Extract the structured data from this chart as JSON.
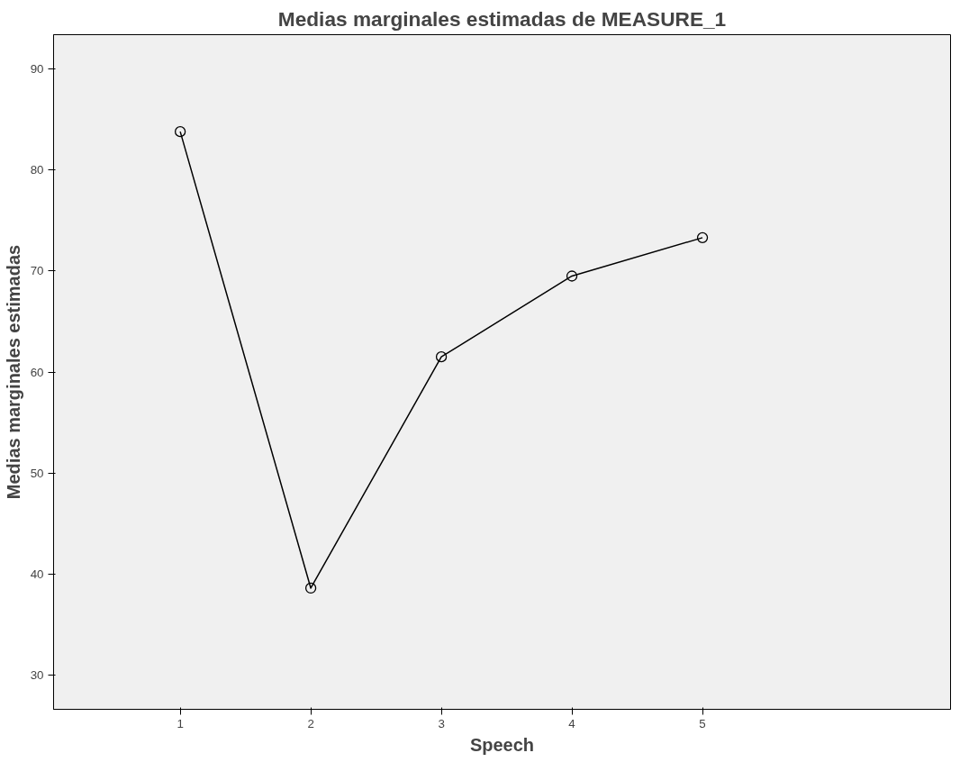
{
  "chart_data": {
    "type": "line",
    "title": "Medias marginales estimadas de MEASURE_1",
    "xlabel": "Speech",
    "ylabel": "Medias marginales estimadas",
    "categories": [
      "1",
      "2",
      "3",
      "4",
      "5"
    ],
    "series": [
      {
        "color": "#000000",
        "values": [
          83.8,
          38.6,
          61.5,
          69.5,
          73.3
        ]
      }
    ],
    "ylim": [
      26.6,
      93.4
    ],
    "yticks": [
      30,
      40,
      50,
      60,
      70,
      80,
      90
    ],
    "grid": false,
    "marker": "circle",
    "line_style": "solid"
  }
}
